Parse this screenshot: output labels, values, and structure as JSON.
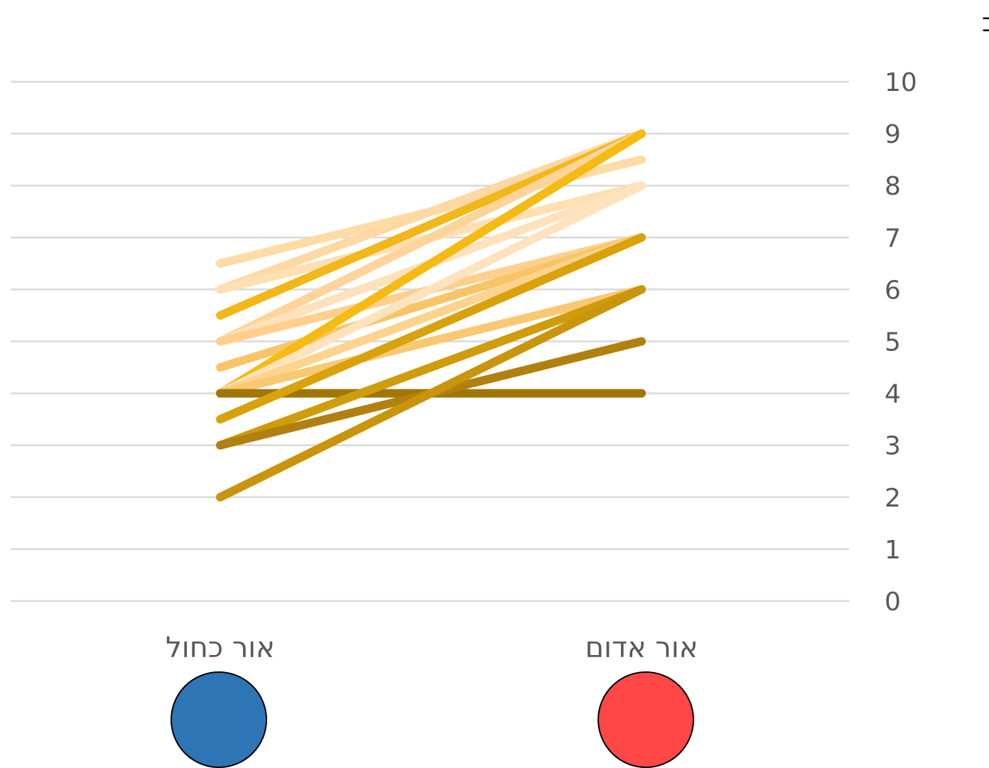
{
  "chart_data": {
    "type": "line",
    "title": "",
    "ylabel": "רמת הכאב",
    "xlabel": "",
    "categories": [
      "אור כחול",
      "אור אדום"
    ],
    "category_marker_colors": [
      "#2e75b6",
      "#ff4747"
    ],
    "ylim": [
      0,
      10
    ],
    "yticks": [
      "0",
      "1",
      "2",
      "3",
      "4",
      "5",
      "6",
      "7",
      "8",
      "9",
      "10"
    ],
    "grid": true,
    "legend": "none",
    "series": [
      {
        "values": [
          6.5,
          8.5
        ],
        "color": "#ffdca6"
      },
      {
        "values": [
          6,
          9
        ],
        "color": "#ffd9a3"
      },
      {
        "values": [
          6,
          8
        ],
        "color": "#ffe0b3"
      },
      {
        "values": [
          5.5,
          9
        ],
        "color": "#f2b718"
      },
      {
        "values": [
          5,
          9
        ],
        "color": "#ffd49b"
      },
      {
        "values": [
          5,
          8
        ],
        "color": "#ffe2bb"
      },
      {
        "values": [
          5,
          7
        ],
        "color": "#ffd08c"
      },
      {
        "values": [
          4.5,
          7
        ],
        "color": "#f7c568"
      },
      {
        "values": [
          4,
          9
        ],
        "color": "#f5bb13"
      },
      {
        "values": [
          4,
          8
        ],
        "color": "#ffe3bf"
      },
      {
        "values": [
          4,
          7
        ],
        "color": "#fdd48e"
      },
      {
        "values": [
          4,
          6
        ],
        "color": "#f9c872"
      },
      {
        "values": [
          4,
          4
        ],
        "color": "#a07608"
      },
      {
        "values": [
          3.5,
          7
        ],
        "color": "#d9a20a"
      },
      {
        "values": [
          3,
          6
        ],
        "color": "#cf9c0a"
      },
      {
        "values": [
          3,
          5
        ],
        "color": "#b08110"
      },
      {
        "values": [
          2,
          6
        ],
        "color": "#c8950c"
      }
    ]
  }
}
